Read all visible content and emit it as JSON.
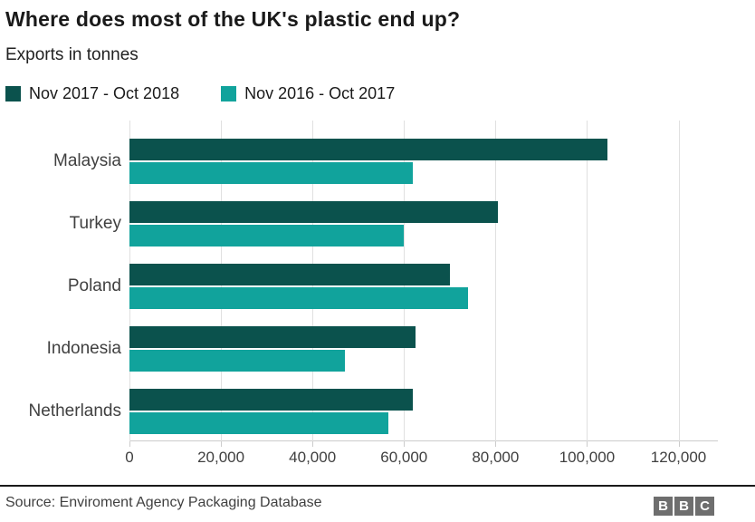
{
  "header": {
    "title": "Where does most of the UK's plastic end up?",
    "subtitle": "Exports in tonnes"
  },
  "legend": [
    {
      "label": "Nov 2017 - Oct 2018",
      "color": "#0b524d"
    },
    {
      "label": "Nov 2016 - Oct 2017",
      "color": "#11a39c"
    }
  ],
  "chart_data": {
    "type": "bar",
    "orientation": "horizontal",
    "title": "Where does most of the UK's plastic end up?",
    "subtitle": "Exports in tonnes",
    "categories": [
      "Malaysia",
      "Turkey",
      "Poland",
      "Indonesia",
      "Netherlands"
    ],
    "series": [
      {
        "name": "Nov 2017 - Oct 2018",
        "color": "#0b524d",
        "values": [
          104500,
          80500,
          70000,
          62500,
          62000
        ]
      },
      {
        "name": "Nov 2016 - Oct 2017",
        "color": "#11a39c",
        "values": [
          62000,
          60000,
          74000,
          47000,
          56500
        ]
      }
    ],
    "xlabel": "",
    "ylabel": "",
    "xlim": [
      0,
      128600
    ],
    "xticks": [
      0,
      20000,
      40000,
      60000,
      80000,
      100000,
      120000
    ],
    "xtick_labels": [
      "0",
      "20,000",
      "40,000",
      "60,000",
      "80,000",
      "100,000",
      "120,000"
    ],
    "grid": true,
    "legend_position": "top"
  },
  "footer": {
    "source": "Source: Enviroment Agency Packaging Database",
    "logo_letters": [
      "B",
      "B",
      "C"
    ]
  }
}
